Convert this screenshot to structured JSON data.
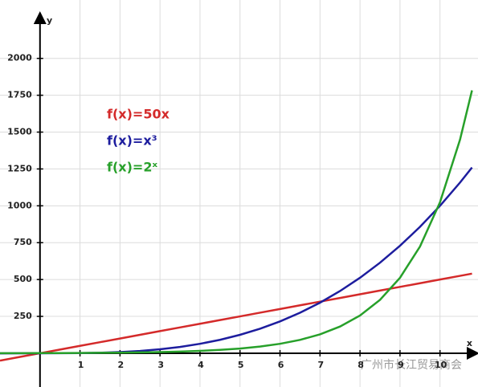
{
  "chart_data": {
    "type": "line",
    "x_label": "x",
    "y_label": "y",
    "x": [
      -1,
      -0.5,
      0,
      0.5,
      1,
      1.5,
      2,
      2.5,
      3,
      3.5,
      4,
      4.5,
      5,
      5.5,
      6,
      6.5,
      7,
      7.5,
      8,
      8.5,
      9,
      9.5,
      10,
      10.5,
      10.8
    ],
    "series": [
      {
        "name": "f(x)=50x",
        "color": "#d42a2a",
        "values": [
          -50,
          -25,
          0,
          25,
          50,
          75,
          100,
          125,
          150,
          175,
          200,
          225,
          250,
          275,
          300,
          325,
          350,
          375,
          400,
          425,
          450,
          475,
          500,
          525,
          540
        ]
      },
      {
        "name": "f(x)=x³",
        "color": "#1d1d9e",
        "values": [
          -1,
          -0.125,
          0,
          0.125,
          1,
          3.375,
          8,
          15.625,
          27,
          42.875,
          64,
          91.125,
          125,
          166.375,
          216,
          274.625,
          343,
          421.875,
          512,
          614.125,
          729,
          857.375,
          1000,
          1157.625,
          1259.712
        ]
      },
      {
        "name": "f(x)=2ˣ",
        "color": "#27a02a",
        "values": [
          0.5,
          0.707,
          1,
          1.414,
          2,
          2.828,
          4,
          5.657,
          8,
          11.314,
          16,
          22.627,
          32,
          45.255,
          64,
          90.51,
          128,
          181.019,
          256,
          362.039,
          512,
          724.077,
          1024,
          1448.155,
          1782.89
        ]
      }
    ],
    "xlim": [
      -1,
      10.95
    ],
    "ylim": [
      -229,
      2396
    ],
    "xticks": [
      1,
      2,
      3,
      4,
      5,
      6,
      7,
      8,
      9,
      10
    ],
    "yticks": [
      250,
      500,
      750,
      1000,
      1250,
      1500,
      1750,
      2000
    ],
    "grid": true,
    "watermark": "广州市长江贸易商会"
  }
}
